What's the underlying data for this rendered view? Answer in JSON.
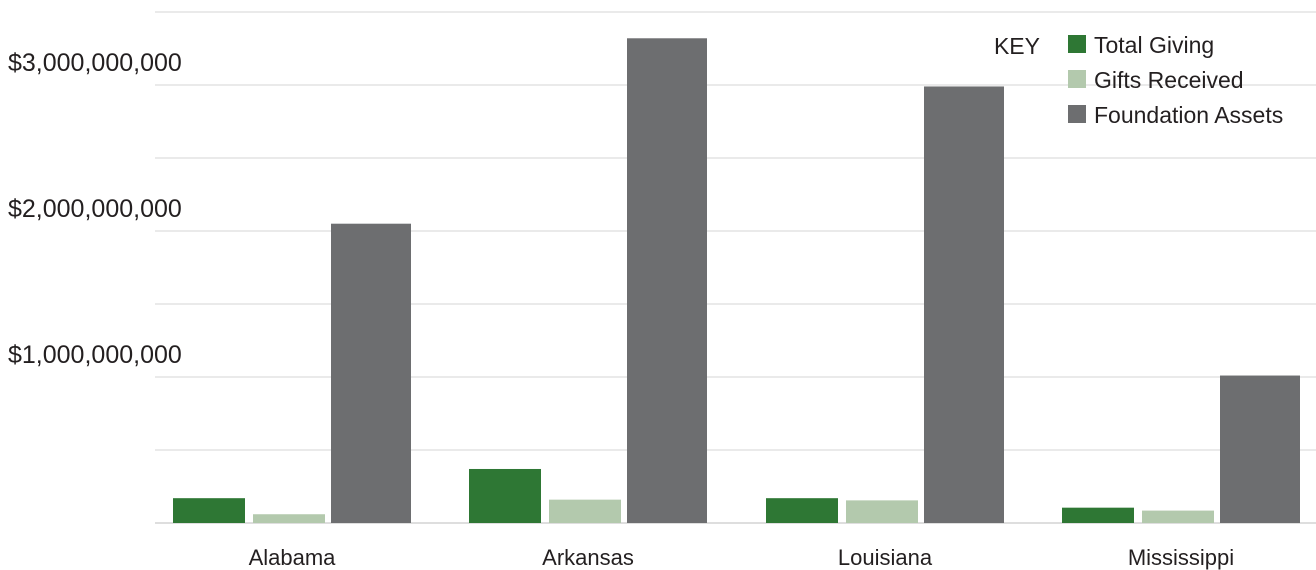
{
  "chart_data": {
    "type": "bar",
    "title": "",
    "xlabel": "",
    "ylabel": "",
    "categories": [
      "Alabama",
      "Arkansas",
      "Louisiana",
      "Mississippi"
    ],
    "series": [
      {
        "name": "Total Giving",
        "color": "#2e7734",
        "values": [
          170000000,
          370000000,
          170000000,
          105000000
        ]
      },
      {
        "name": "Gifts Received",
        "color": "#b3c9ad",
        "values": [
          60000000,
          160000000,
          155000000,
          85000000
        ]
      },
      {
        "name": "Foundation Assets",
        "color": "#6d6e70",
        "values": [
          2050000000,
          3320000000,
          2990000000,
          1010000000
        ]
      }
    ],
    "ylim": [
      0,
      3500000000
    ],
    "yticks": [
      1000000000,
      2000000000,
      3000000000
    ],
    "ytick_labels": [
      "$1,000,000,000",
      "$2,000,000,000",
      "$3,000,000,000"
    ],
    "grid": true,
    "legend_title": "KEY",
    "legend_position": "top-right"
  }
}
